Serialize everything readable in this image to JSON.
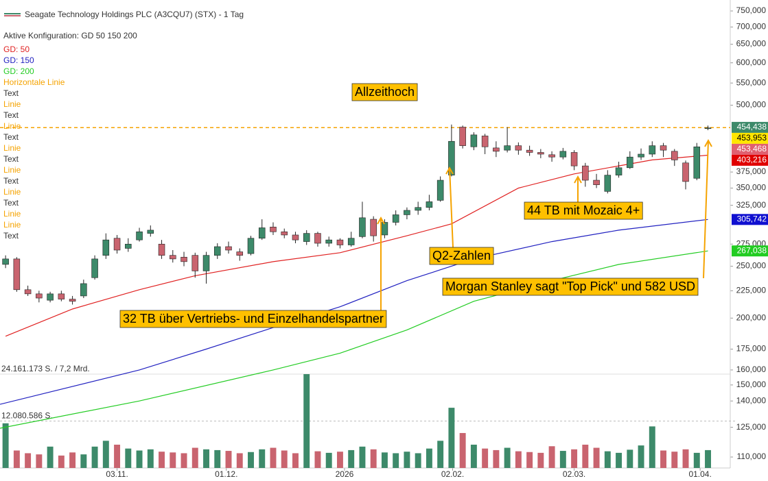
{
  "chart_data": {
    "type": "candlestick",
    "title": "Seagate Technology Holdings PLC (A3CQU7) (STX) - 1 Tag",
    "subtitle": "Aktive Konfiguration: GD 50 150 200",
    "log_scale": true,
    "ylim": [
      110,
      750
    ],
    "xlim": [
      -0.5,
      65
    ],
    "up_color": "#3d8a6a",
    "down_color": "#c9646f",
    "yticks": [
      {
        "value": 750,
        "label": "750,000"
      },
      {
        "value": 700,
        "label": "700,000"
      },
      {
        "value": 650,
        "label": "650,000"
      },
      {
        "value": 600,
        "label": "600,000"
      },
      {
        "value": 550,
        "label": "550,000"
      },
      {
        "value": 500,
        "label": "500,000"
      },
      {
        "value": 375,
        "label": "375,000"
      },
      {
        "value": 350,
        "label": "350,000"
      },
      {
        "value": 325,
        "label": "325,000"
      },
      {
        "value": 275,
        "label": "275,000"
      },
      {
        "value": 250,
        "label": "250,000"
      },
      {
        "value": 225,
        "label": "225,000"
      },
      {
        "value": 200,
        "label": "200,000"
      },
      {
        "value": 175,
        "label": "175,000"
      },
      {
        "value": 160,
        "label": "160,000"
      },
      {
        "value": 150,
        "label": "150,000"
      },
      {
        "value": 140,
        "label": "140,000"
      },
      {
        "value": 125,
        "label": "125,000"
      },
      {
        "value": 110,
        "label": "110,000"
      }
    ],
    "xticks": [
      {
        "value": 10,
        "label": "03.11."
      },
      {
        "value": 19.8,
        "label": "01.12."
      },
      {
        "value": 30.4,
        "label": "2026"
      },
      {
        "value": 40.1,
        "label": "02.02."
      },
      {
        "value": 51,
        "label": "02.03."
      },
      {
        "value": 62.3,
        "label": "01.04."
      }
    ],
    "open": [
      252,
      258,
      226,
      222,
      216,
      222,
      217,
      220,
      238,
      262,
      282,
      270,
      280,
      288,
      275,
      262,
      260,
      262,
      245,
      262,
      272,
      266,
      264,
      282,
      296,
      290,
      286,
      278,
      288,
      276,
      280,
      274,
      284,
      306,
      286,
      302,
      312,
      318,
      322,
      332,
      370,
      455,
      418,
      438,
      416,
      412,
      420,
      412,
      408,
      404,
      400,
      408,
      385,
      362,
      345,
      370,
      382,
      400,
      405,
      420,
      410,
      390,
      365,
      452
    ],
    "high": [
      262,
      260,
      230,
      225,
      224,
      225,
      220,
      236,
      262,
      288,
      286,
      282,
      295,
      298,
      280,
      268,
      266,
      265,
      266,
      276,
      278,
      270,
      285,
      306,
      302,
      294,
      290,
      292,
      290,
      284,
      282,
      290,
      330,
      310,
      306,
      318,
      322,
      330,
      340,
      368,
      460,
      458,
      445,
      442,
      428,
      455,
      426,
      420,
      414,
      410,
      416,
      412,
      390,
      372,
      378,
      392,
      410,
      415,
      428,
      425,
      414,
      394,
      425,
      458
    ],
    "low": [
      248,
      224,
      220,
      214,
      214,
      215,
      212,
      218,
      236,
      258,
      264,
      266,
      278,
      284,
      258,
      254,
      250,
      238,
      232,
      258,
      264,
      256,
      262,
      280,
      286,
      282,
      276,
      274,
      272,
      272,
      270,
      272,
      282,
      278,
      282,
      298,
      306,
      312,
      318,
      330,
      368,
      415,
      412,
      405,
      400,
      408,
      404,
      402,
      398,
      392,
      396,
      378,
      352,
      350,
      342,
      366,
      380,
      395,
      400,
      400,
      385,
      348,
      362,
      449
    ],
    "close": [
      258,
      226,
      222,
      218,
      222,
      217,
      215,
      232,
      258,
      280,
      268,
      275,
      290,
      292,
      262,
      258,
      255,
      245,
      262,
      272,
      268,
      262,
      282,
      295,
      290,
      286,
      280,
      288,
      276,
      280,
      274,
      282,
      308,
      285,
      302,
      312,
      318,
      322,
      330,
      362,
      428,
      420,
      440,
      418,
      410,
      420,
      412,
      408,
      405,
      400,
      410,
      385,
      362,
      355,
      370,
      382,
      400,
      405,
      420,
      412,
      395,
      360,
      418,
      453.468
    ],
    "volume": {
      "values": [
        11.5,
        4.5,
        3.8,
        3.5,
        5.5,
        3.2,
        4,
        3.5,
        5.5,
        7,
        6,
        5,
        4.5,
        4.8,
        4.2,
        4,
        3.8,
        5.2,
        4.8,
        4.6,
        4.4,
        3.8,
        4.1,
        4.8,
        5.2,
        4.5,
        3.8,
        24.16,
        4.3,
        3.9,
        4.2,
        4.6,
        5.5,
        4.8,
        4,
        3.8,
        4.2,
        3.8,
        5,
        7,
        15.5,
        9,
        6,
        5,
        4.6,
        5.2,
        4.3,
        4.1,
        3.9,
        5.6,
        4.4,
        4.8,
        6,
        5.2,
        4.3,
        3.9,
        4.7,
        5.8,
        10.7,
        4.5,
        4.2,
        4.8,
        3.9,
        4.6
      ],
      "ylim": [
        0,
        24.161173
      ],
      "max_label": "24.161.173 S. / 7,2 Mrd.",
      "mid": {
        "value": 12.080586,
        "label": "12.080.586 S."
      }
    },
    "moving_averages": [
      {
        "name": "GD: 50",
        "color": "#e02020",
        "x": [
          0,
          6,
          12,
          17,
          24,
          30,
          36,
          40,
          46,
          51,
          55,
          58,
          63
        ],
        "values": [
          185,
          208,
          226,
          240,
          255,
          265,
          285,
          300,
          350,
          372,
          385,
          395,
          403.216
        ]
      },
      {
        "name": "GD: 150",
        "color": "#2020c0",
        "x": [
          -0.5,
          12,
          18,
          24,
          30,
          36,
          42,
          49,
          55,
          63
        ],
        "values": [
          138,
          160,
          175,
          192,
          210,
          235,
          258,
          278,
          292,
          305.742
        ]
      },
      {
        "name": "GD: 200",
        "color": "#22cc22",
        "x": [
          -0.5,
          12,
          24,
          30,
          36,
          42,
          49,
          55,
          63
        ],
        "values": [
          124.5,
          140,
          160,
          172,
          190,
          215,
          235,
          252,
          267.038
        ]
      }
    ],
    "horizontal_line": {
      "name": "Horizontale Linie",
      "value": 453.953,
      "color": "#f5a300"
    },
    "legend_extra": [
      "Text",
      "Linie",
      "Text",
      "Linie",
      "Text",
      "Linie",
      "Text",
      "Linie",
      "Text",
      "Linie",
      "Text",
      "Linie",
      "Linie",
      "Text"
    ],
    "price_badges": [
      {
        "value": 454.438,
        "label": "454,438",
        "color": "#3d8a6a"
      },
      {
        "value": 453.953,
        "label": "453,953",
        "color": "#ffe600"
      },
      {
        "value": 453.468,
        "label": "453,468",
        "color": "#e06070"
      },
      {
        "value": 403.216,
        "label": "403,216",
        "color": "#e00000"
      },
      {
        "value": 305.742,
        "label": "305,742",
        "color": "#1010d0"
      },
      {
        "value": 267.038,
        "label": "267,038",
        "color": "#22cc22"
      }
    ],
    "annotations": [
      "Allzeithoch",
      "Q2-Zahlen",
      "44 TB mit Mozaic 4+",
      "Morgan Stanley sagt \"Top Pick\" und 582 USD",
      "32 TB über Vertriebs- und Einzelhandelspartner"
    ]
  }
}
